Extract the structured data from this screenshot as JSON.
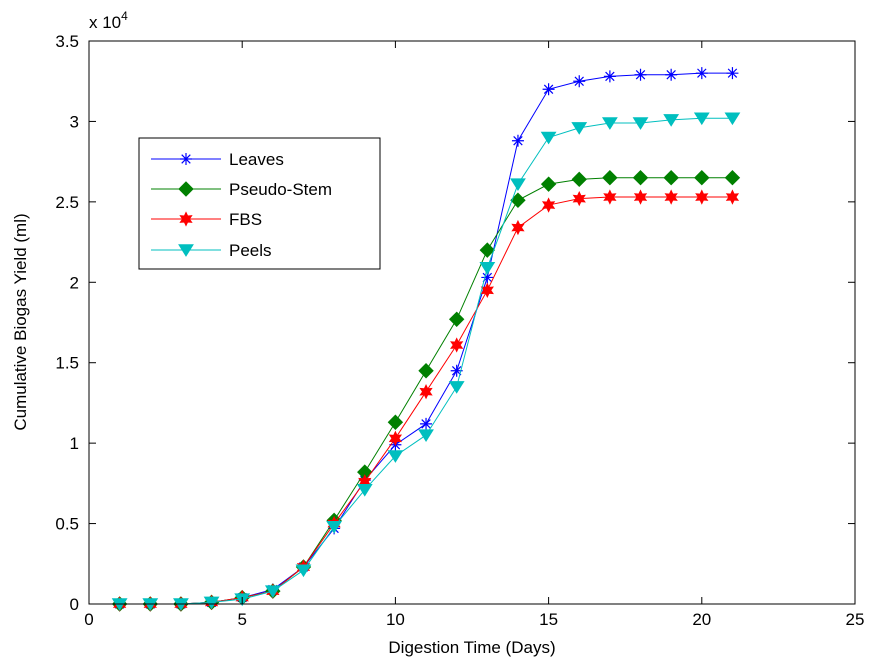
{
  "chart_data": {
    "type": "line",
    "title": "",
    "xlabel": "Digestion Time (Days)",
    "ylabel": "Cumulative Biogas Yield (ml)",
    "y_multiplier_label": "x 10",
    "y_multiplier_exponent": "4",
    "xlim": [
      0,
      25
    ],
    "ylim": [
      0,
      35000
    ],
    "xticks": [
      0,
      5,
      10,
      15,
      20,
      25
    ],
    "yticks": [
      0,
      5000,
      10000,
      15000,
      20000,
      25000,
      30000,
      35000
    ],
    "ytick_labels": [
      "0",
      "0.5",
      "1",
      "1.5",
      "2",
      "2.5",
      "3",
      "3.5"
    ],
    "grid": false,
    "legend_position": "upper-left",
    "x": [
      1,
      2,
      3,
      4,
      5,
      6,
      7,
      8,
      9,
      10,
      11,
      12,
      13,
      14,
      15,
      16,
      17,
      18,
      19,
      20,
      21
    ],
    "series": [
      {
        "name": "Leaves",
        "color": "#0000ff",
        "marker": "asterisk",
        "values": [
          0,
          0,
          0,
          100,
          400,
          900,
          2300,
          4700,
          7700,
          9900,
          11200,
          14500,
          20300,
          28800,
          32000,
          32500,
          32800,
          32900,
          32900,
          33000,
          33000
        ]
      },
      {
        "name": "Pseudo-Stem",
        "color": "#008000",
        "marker": "diamond",
        "values": [
          0,
          0,
          0,
          100,
          400,
          800,
          2300,
          5200,
          8200,
          11300,
          14500,
          17700,
          22000,
          25100,
          26100,
          26400,
          26500,
          26500,
          26500,
          26500,
          26500
        ]
      },
      {
        "name": "FBS",
        "color": "#ff0000",
        "marker": "hexagram",
        "values": [
          0,
          0,
          0,
          100,
          400,
          800,
          2300,
          5000,
          7600,
          10300,
          13200,
          16100,
          19500,
          23400,
          24800,
          25200,
          25300,
          25300,
          25300,
          25300,
          25300
        ]
      },
      {
        "name": "Peels",
        "color": "#00bfbf",
        "marker": "triangle-down",
        "values": [
          0,
          0,
          0,
          100,
          300,
          800,
          2100,
          4800,
          7100,
          9200,
          10500,
          13500,
          20900,
          26100,
          29000,
          29600,
          29900,
          29900,
          30100,
          30200,
          30200
        ]
      }
    ]
  }
}
